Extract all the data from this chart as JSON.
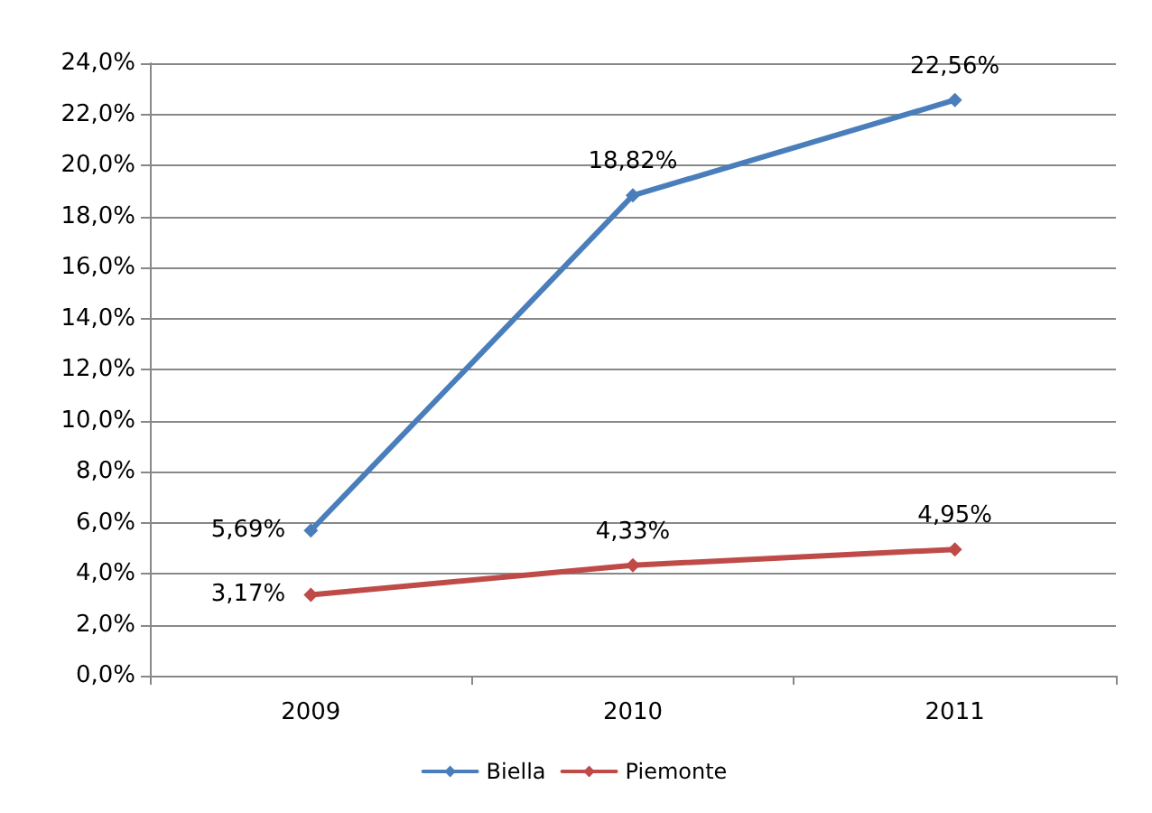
{
  "chart_data": {
    "type": "line",
    "categories": [
      "2009",
      "2010",
      "2011"
    ],
    "series": [
      {
        "name": "Biella",
        "color": "#4a7ebb",
        "values": [
          5.69,
          18.82,
          22.56
        ],
        "value_labels": [
          "5,69%",
          "18,82%",
          "22,56%"
        ]
      },
      {
        "name": "Piemonte",
        "color": "#be4b48",
        "values": [
          3.17,
          4.33,
          4.95
        ],
        "value_labels": [
          "3,17%",
          "4,33%",
          "4,95%"
        ]
      }
    ],
    "ylim": [
      0,
      24
    ],
    "yticks": [
      {
        "value": 0,
        "label": "0,0%"
      },
      {
        "value": 2,
        "label": "2,0%"
      },
      {
        "value": 4,
        "label": "4,0%"
      },
      {
        "value": 6,
        "label": "6,0%"
      },
      {
        "value": 8,
        "label": "8,0%"
      },
      {
        "value": 10,
        "label": "10,0%"
      },
      {
        "value": 12,
        "label": "12,0%"
      },
      {
        "value": 14,
        "label": "14,0%"
      },
      {
        "value": 16,
        "label": "16,0%"
      },
      {
        "value": 18,
        "label": "18,0%"
      },
      {
        "value": 20,
        "label": "20,0%"
      },
      {
        "value": 22,
        "label": "22,0%"
      },
      {
        "value": 24,
        "label": "24,0%"
      }
    ],
    "grid": "y",
    "legend": "bottom",
    "marker": "diamond",
    "line_style": "solid"
  }
}
